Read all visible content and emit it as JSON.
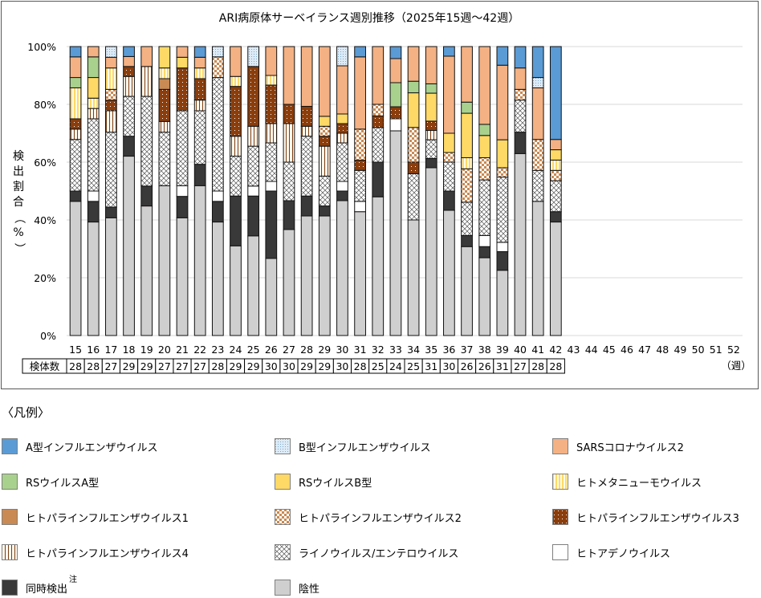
{
  "chart_data": {
    "type": "bar",
    "stacked": true,
    "title": "ARI病原体サーベイランス週別推移（2025年15週～42週）",
    "xlabel": "（週）",
    "ylabel": "検出割合（%）",
    "ylim": [
      0,
      100
    ],
    "yticks": [
      "0%",
      "20%",
      "40%",
      "60%",
      "80%",
      "100%"
    ],
    "grid": true,
    "categories": [
      "15",
      "16",
      "17",
      "18",
      "19",
      "20",
      "21",
      "22",
      "23",
      "24",
      "25",
      "26",
      "27",
      "28",
      "29",
      "30",
      "31",
      "32",
      "33",
      "34",
      "35",
      "36",
      "37",
      "38",
      "39",
      "40",
      "41",
      "42",
      "43",
      "44",
      "45",
      "46",
      "47",
      "48",
      "49",
      "50",
      "51",
      "52"
    ],
    "specimen_label": "検体数",
    "specimen_counts": [
      28,
      28,
      27,
      29,
      29,
      27,
      27,
      27,
      28,
      29,
      29,
      30,
      30,
      29,
      29,
      30,
      28,
      25,
      24,
      25,
      31,
      30,
      26,
      26,
      31,
      27,
      28,
      28
    ],
    "value_unit": "specimen count per week (percent = count / specimens)",
    "series": [
      {
        "name": "陰性",
        "key": "neg",
        "color": "#d0cfcf",
        "pattern": "solid",
        "values": [
          13,
          11,
          11,
          18,
          13,
          14,
          11,
          14,
          11,
          9,
          10,
          8,
          11,
          12,
          12,
          14,
          12,
          12,
          17,
          10,
          18,
          13,
          8,
          7,
          7,
          17,
          13,
          11
        ]
      },
      {
        "name": "同時検出",
        "key": "co",
        "color": "#393939",
        "pattern": "solid",
        "note": "注",
        "values": [
          1,
          2,
          1,
          2,
          2,
          0,
          2,
          2,
          2,
          5,
          4,
          7,
          3,
          2,
          1,
          1,
          0,
          3,
          0,
          0,
          1,
          2,
          1,
          1,
          2,
          2,
          0,
          1
        ]
      },
      {
        "name": "ヒトアデノウイルス",
        "key": "adeno",
        "color": "#ffffff",
        "pattern": "solid",
        "values": [
          0,
          1,
          0,
          0,
          0,
          0,
          1,
          0,
          1,
          0,
          1,
          1,
          0,
          0,
          0,
          1,
          1,
          0,
          1,
          0,
          0,
          0,
          0,
          1,
          1,
          0,
          0,
          0
        ]
      },
      {
        "name": "ライノウイルス/エンテロウイルス",
        "key": "rhino",
        "color": "#ffffff",
        "pattern": "crosshatch",
        "values": [
          5,
          7,
          7,
          4,
          9,
          5,
          7,
          5,
          11,
          4,
          4,
          4,
          4,
          6,
          3,
          4,
          3,
          3,
          0,
          4,
          2,
          3,
          3,
          5,
          7,
          3,
          3,
          3
        ]
      },
      {
        "name": "ヒトパラインフルエンザウイルス4",
        "key": "p4",
        "color": "#fff8ee",
        "pattern": "vstripe-brown",
        "values": [
          1,
          1,
          2,
          2,
          3,
          1,
          0,
          1,
          0,
          2,
          2,
          2,
          4,
          1,
          3,
          1,
          0,
          0,
          0,
          0,
          1,
          0,
          0,
          0,
          0,
          0,
          0,
          0
        ]
      },
      {
        "name": "ヒトパラインフルエンザウイルス3",
        "key": "p3",
        "color": "#8b3d0b",
        "pattern": "dots",
        "values": [
          1,
          0,
          1,
          1,
          0,
          3,
          4,
          2,
          0,
          5,
          6,
          4,
          2,
          2,
          1,
          1,
          1,
          1,
          1,
          1,
          1,
          0,
          0,
          0,
          0,
          0,
          0,
          0
        ]
      },
      {
        "name": "ヒトパラインフルエンザウイルス2",
        "key": "p2",
        "color": "#c98a53",
        "pattern": "checker",
        "values": [
          0,
          0,
          1,
          0,
          0,
          0,
          0,
          0,
          2,
          0,
          0,
          0,
          0,
          0,
          1,
          0,
          3,
          1,
          0,
          3,
          0,
          1,
          3,
          2,
          1,
          1,
          3,
          1
        ]
      },
      {
        "name": "ヒトパラインフルエンザウイルス1",
        "key": "p1",
        "color": "#c98a53",
        "pattern": "solid",
        "values": [
          0,
          0,
          0,
          0,
          0,
          1,
          0,
          0,
          0,
          0,
          0,
          0,
          0,
          0,
          0,
          0,
          0,
          0,
          0,
          0,
          0,
          0,
          0,
          0,
          0,
          0,
          0,
          0
        ]
      },
      {
        "name": "ヒトメタニューモウイルス",
        "key": "hmpv",
        "color": "#ffe699",
        "pattern": "vstripe-yellow",
        "values": [
          3,
          1,
          2,
          0,
          0,
          1,
          0,
          1,
          0,
          1,
          0,
          1,
          0,
          0,
          0,
          0,
          0,
          0,
          0,
          0,
          0,
          0,
          1,
          0,
          0,
          0,
          0,
          1
        ]
      },
      {
        "name": "RSウイルスB型",
        "key": "rsb",
        "color": "#ffd966",
        "pattern": "solid",
        "values": [
          0,
          2,
          0,
          0,
          0,
          2,
          1,
          0,
          0,
          0,
          0,
          0,
          0,
          0,
          1,
          1,
          0,
          0,
          0,
          3,
          3,
          2,
          4,
          2,
          3,
          0,
          0,
          1
        ]
      },
      {
        "name": "RSウイルスA型",
        "key": "rsa",
        "color": "#a9d18e",
        "pattern": "solid",
        "values": [
          1,
          2,
          0,
          0,
          0,
          0,
          0,
          0,
          0,
          0,
          0,
          0,
          0,
          0,
          0,
          0,
          0,
          0,
          2,
          1,
          1,
          0,
          1,
          1,
          0,
          0,
          0,
          0
        ]
      },
      {
        "name": "SARSコロナウイルス2",
        "key": "sars",
        "color": "#f4b183",
        "pattern": "solid",
        "values": [
          2,
          1,
          1,
          1,
          2,
          0,
          1,
          1,
          0,
          3,
          0,
          3,
          6,
          6,
          7,
          5,
          7,
          5,
          2,
          3,
          4,
          8,
          5,
          7,
          8,
          2,
          5,
          1
        ]
      },
      {
        "name": "B型インフルエンザウイルス",
        "key": "flub",
        "color": "#ddebf7",
        "pattern": "dots-blue",
        "values": [
          0,
          0,
          1,
          0,
          0,
          0,
          0,
          0,
          1,
          0,
          2,
          0,
          0,
          0,
          0,
          2,
          0,
          0,
          0,
          0,
          0,
          0,
          0,
          0,
          0,
          0,
          1,
          0
        ]
      },
      {
        "name": "A型インフルエンザウイルス",
        "key": "flua",
        "color": "#5b9bd5",
        "pattern": "solid",
        "values": [
          1,
          0,
          0,
          1,
          0,
          0,
          0,
          1,
          0,
          0,
          0,
          0,
          0,
          0,
          0,
          0,
          1,
          0,
          1,
          0,
          0,
          1,
          0,
          0,
          2,
          2,
          3,
          9
        ]
      }
    ]
  },
  "legend": {
    "title": "〈凡例〉",
    "items": [
      {
        "label": "A型インフルエンザウイルス",
        "key": "flua"
      },
      {
        "label": "B型インフルエンザウイルス",
        "key": "flub"
      },
      {
        "label": "SARSコロナウイルス2",
        "key": "sars"
      },
      {
        "label": "RSウイルスA型",
        "key": "rsa"
      },
      {
        "label": "RSウイルスB型",
        "key": "rsb"
      },
      {
        "label": "ヒトメタニューモウイルス",
        "key": "hmpv"
      },
      {
        "label": "ヒトパラインフルエンザウイルス1",
        "key": "p1"
      },
      {
        "label": "ヒトパラインフルエンザウイルス2",
        "key": "p2"
      },
      {
        "label": "ヒトパラインフルエンザウイルス3",
        "key": "p3"
      },
      {
        "label": "ヒトパラインフルエンザウイルス4",
        "key": "p4"
      },
      {
        "label": "ライノウイルス/エンテロウイルス",
        "key": "rhino"
      },
      {
        "label": "ヒトアデノウイルス",
        "key": "adeno"
      },
      {
        "label": "同時検出",
        "key": "co",
        "note": "注"
      },
      {
        "label": "陰性",
        "key": "neg"
      }
    ]
  }
}
